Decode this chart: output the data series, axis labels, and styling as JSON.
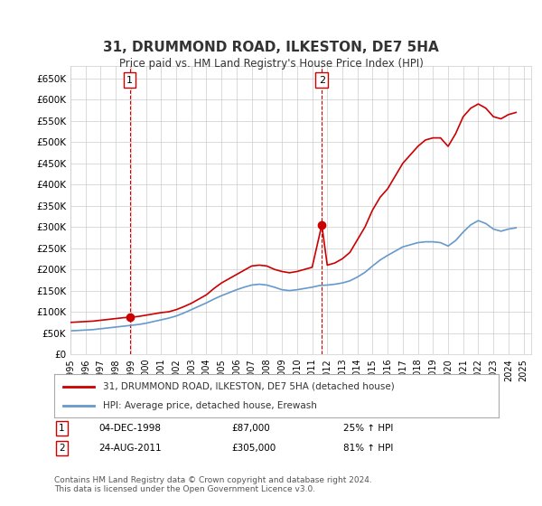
{
  "title": "31, DRUMMOND ROAD, ILKESTON, DE7 5HA",
  "subtitle": "Price paid vs. HM Land Registry's House Price Index (HPI)",
  "xlabel": "",
  "ylabel": "",
  "background_color": "#ffffff",
  "grid_color": "#cccccc",
  "ylim": [
    0,
    680000
  ],
  "yticks": [
    0,
    50000,
    100000,
    150000,
    200000,
    250000,
    300000,
    350000,
    400000,
    450000,
    500000,
    550000,
    600000,
    650000
  ],
  "ytick_labels": [
    "£0",
    "£50K",
    "£100K",
    "£150K",
    "£200K",
    "£250K",
    "£300K",
    "£350K",
    "£400K",
    "£450K",
    "£500K",
    "£550K",
    "£600K",
    "£650K"
  ],
  "xlim_start": 1995.0,
  "xlim_end": 2025.5,
  "xtick_years": [
    1995,
    1996,
    1997,
    1998,
    1999,
    2000,
    2001,
    2002,
    2003,
    2004,
    2005,
    2006,
    2007,
    2008,
    2009,
    2010,
    2011,
    2012,
    2013,
    2014,
    2015,
    2016,
    2017,
    2018,
    2019,
    2020,
    2021,
    2022,
    2023,
    2024,
    2025
  ],
  "point1_x": 1998.92,
  "point1_y": 87000,
  "point1_label": "1",
  "point1_date": "04-DEC-1998",
  "point1_price": "£87,000",
  "point1_hpi": "25% ↑ HPI",
  "point2_x": 2011.64,
  "point2_y": 305000,
  "point2_label": "2",
  "point2_date": "24-AUG-2011",
  "point2_price": "£305,000",
  "point2_hpi": "81% ↑ HPI",
  "red_line_color": "#cc0000",
  "blue_line_color": "#6699cc",
  "marker_color": "#cc0000",
  "dashed_color": "#cc0000",
  "legend_label_red": "31, DRUMMOND ROAD, ILKESTON, DE7 5HA (detached house)",
  "legend_label_blue": "HPI: Average price, detached house, Erewash",
  "footer_text": "Contains HM Land Registry data © Crown copyright and database right 2024.\nThis data is licensed under the Open Government Licence v3.0.",
  "red_x": [
    1995.0,
    1995.5,
    1996.0,
    1996.5,
    1997.0,
    1997.5,
    1998.0,
    1998.5,
    1998.92,
    1999.5,
    2000.0,
    2000.5,
    2001.0,
    2001.5,
    2002.0,
    2002.5,
    2003.0,
    2003.5,
    2004.0,
    2004.5,
    2005.0,
    2005.5,
    2006.0,
    2006.5,
    2007.0,
    2007.5,
    2008.0,
    2008.5,
    2009.0,
    2009.5,
    2010.0,
    2010.5,
    2011.0,
    2011.64,
    2012.0,
    2012.5,
    2013.0,
    2013.5,
    2014.0,
    2014.5,
    2015.0,
    2015.5,
    2016.0,
    2016.5,
    2017.0,
    2017.5,
    2018.0,
    2018.5,
    2019.0,
    2019.5,
    2020.0,
    2020.5,
    2021.0,
    2021.5,
    2022.0,
    2022.5,
    2023.0,
    2023.5,
    2024.0,
    2024.5
  ],
  "red_y": [
    75000,
    76000,
    77000,
    78000,
    80000,
    82000,
    84000,
    86000,
    87000,
    89000,
    92000,
    95000,
    98000,
    100000,
    105000,
    112000,
    120000,
    130000,
    140000,
    155000,
    168000,
    178000,
    188000,
    198000,
    208000,
    210000,
    208000,
    200000,
    195000,
    192000,
    195000,
    200000,
    205000,
    305000,
    210000,
    215000,
    225000,
    240000,
    270000,
    300000,
    340000,
    370000,
    390000,
    420000,
    450000,
    470000,
    490000,
    505000,
    510000,
    510000,
    490000,
    520000,
    560000,
    580000,
    590000,
    580000,
    560000,
    555000,
    565000,
    570000
  ],
  "blue_x": [
    1995.0,
    1995.5,
    1996.0,
    1996.5,
    1997.0,
    1997.5,
    1998.0,
    1998.5,
    1999.0,
    1999.5,
    2000.0,
    2000.5,
    2001.0,
    2001.5,
    2002.0,
    2002.5,
    2003.0,
    2003.5,
    2004.0,
    2004.5,
    2005.0,
    2005.5,
    2006.0,
    2006.5,
    2007.0,
    2007.5,
    2008.0,
    2008.5,
    2009.0,
    2009.5,
    2010.0,
    2010.5,
    2011.0,
    2011.5,
    2012.0,
    2012.5,
    2013.0,
    2013.5,
    2014.0,
    2014.5,
    2015.0,
    2015.5,
    2016.0,
    2016.5,
    2017.0,
    2017.5,
    2018.0,
    2018.5,
    2019.0,
    2019.5,
    2020.0,
    2020.5,
    2021.0,
    2021.5,
    2022.0,
    2022.5,
    2023.0,
    2023.5,
    2024.0,
    2024.5
  ],
  "blue_y": [
    55000,
    56000,
    57000,
    58000,
    60000,
    62000,
    64000,
    66000,
    68000,
    70000,
    73000,
    77000,
    81000,
    85000,
    90000,
    97000,
    105000,
    113000,
    121000,
    130000,
    138000,
    145000,
    152000,
    158000,
    163000,
    165000,
    163000,
    158000,
    152000,
    150000,
    152000,
    155000,
    158000,
    162000,
    163000,
    165000,
    168000,
    173000,
    182000,
    193000,
    208000,
    222000,
    233000,
    243000,
    253000,
    258000,
    263000,
    265000,
    265000,
    263000,
    255000,
    268000,
    288000,
    305000,
    315000,
    308000,
    295000,
    290000,
    295000,
    298000
  ]
}
